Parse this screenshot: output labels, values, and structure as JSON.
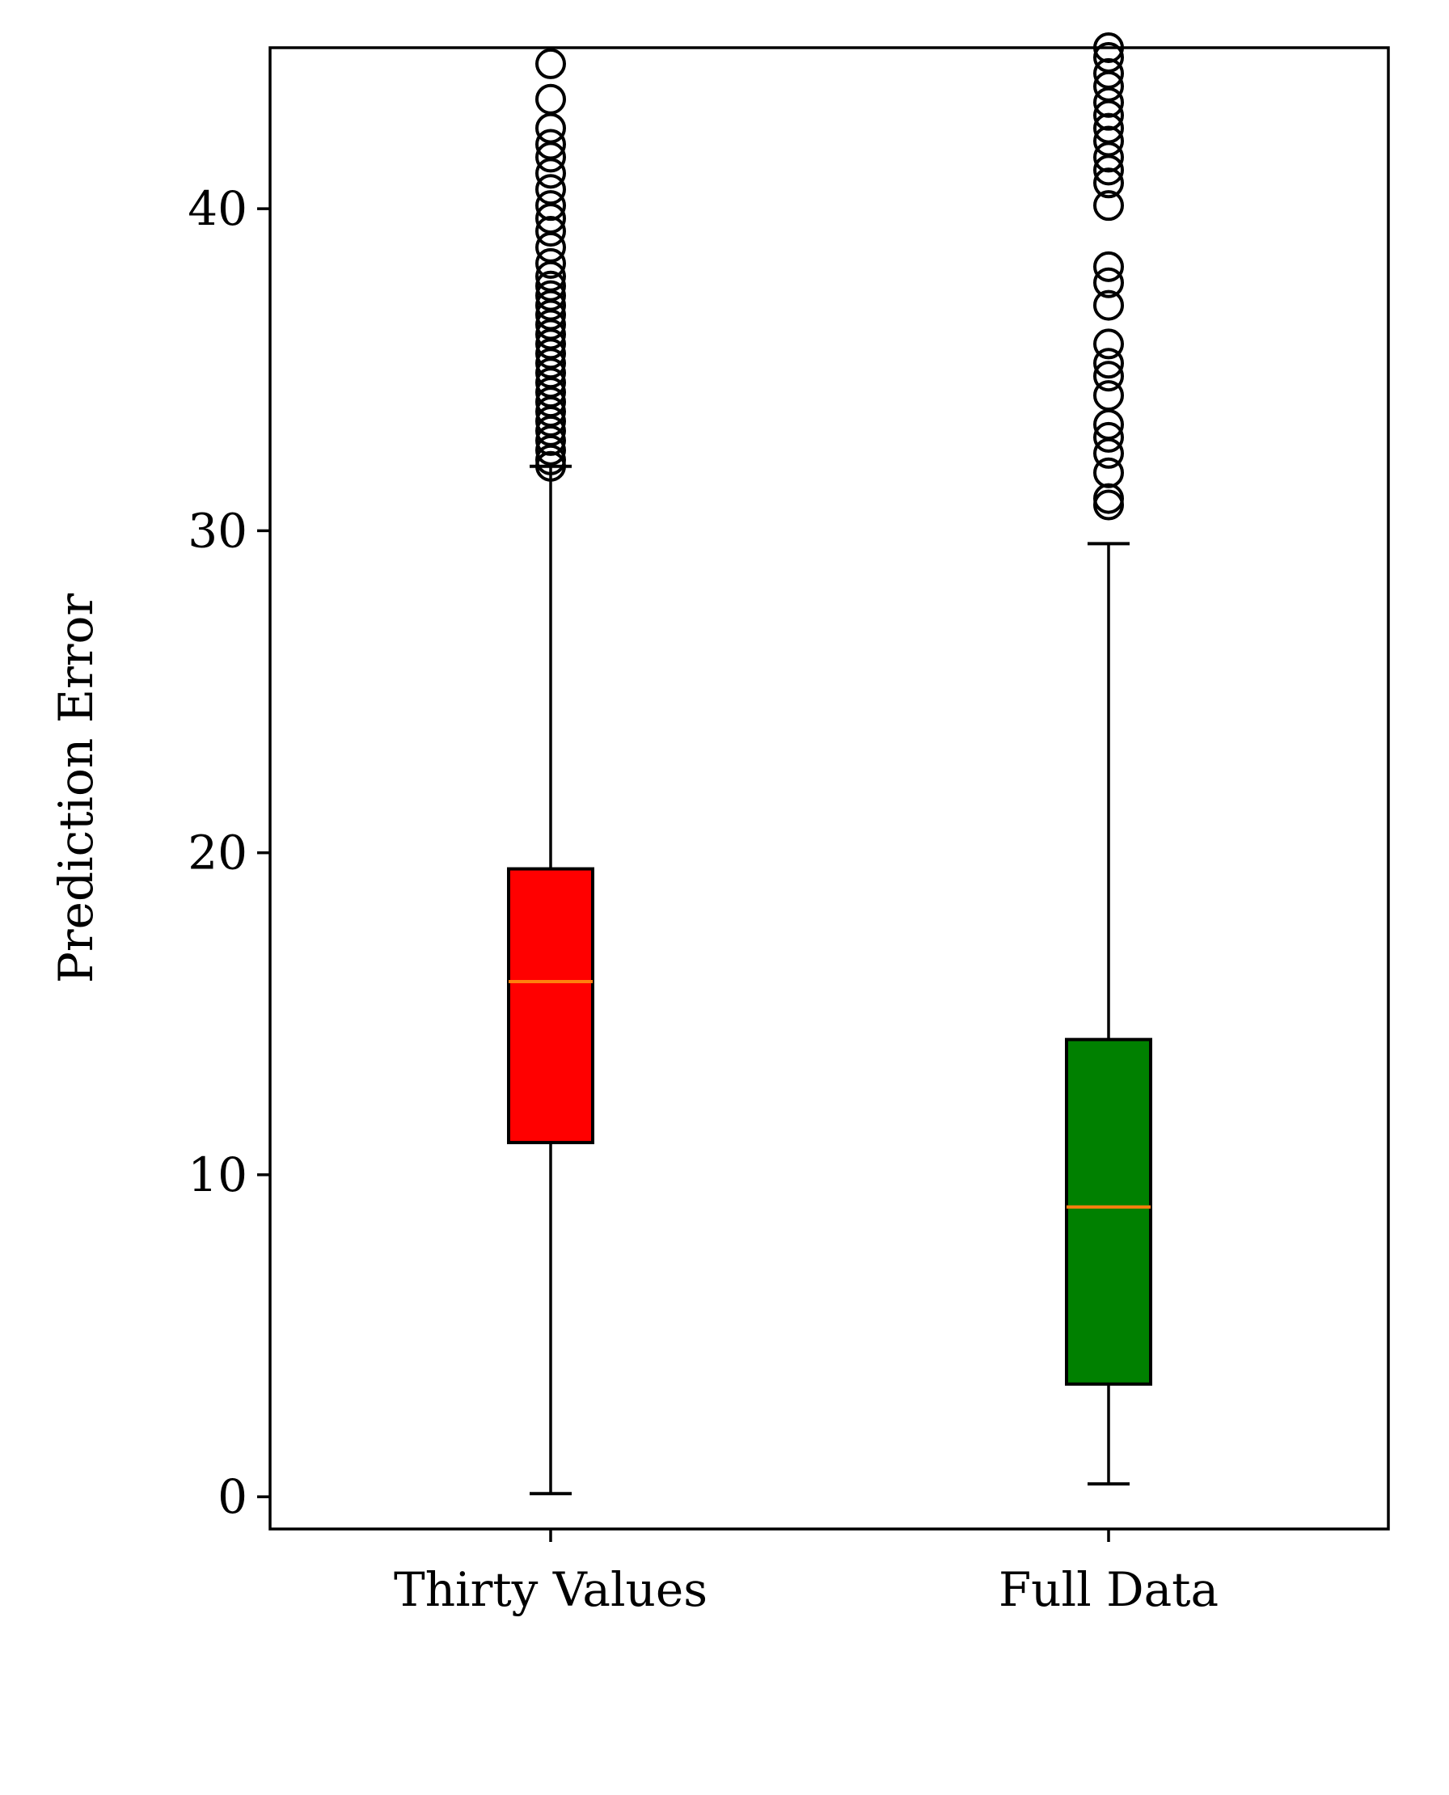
{
  "chart_data": {
    "type": "box",
    "title": "",
    "xlabel": "",
    "ylabel": "Prediction Error",
    "ylim": [
      -1,
      45
    ],
    "yticks": [
      0,
      10,
      20,
      30,
      40
    ],
    "grid": false,
    "categories": [
      "Thirty Values",
      "Full Data"
    ],
    "boxes": [
      {
        "label": "Thirty Values",
        "color": "#ff0000",
        "whisker_low": 0.1,
        "q1": 11.0,
        "median": 16.0,
        "q3": 19.5,
        "whisker_high": 32.0,
        "outliers": [
          32.0,
          32.2,
          32.5,
          32.8,
          33.1,
          33.4,
          33.7,
          34.0,
          34.3,
          34.6,
          34.9,
          35.2,
          35.5,
          35.8,
          36.1,
          36.4,
          36.7,
          37.0,
          37.3,
          37.6,
          37.9,
          38.3,
          38.8,
          39.3,
          39.7,
          40.1,
          40.6,
          41.1,
          41.6,
          42.0,
          42.5,
          43.4,
          44.5
        ]
      },
      {
        "label": "Full Data",
        "color": "#008000",
        "whisker_low": 0.4,
        "q1": 3.5,
        "median": 9.0,
        "q3": 14.2,
        "whisker_high": 29.6,
        "outliers": [
          30.8,
          31.0,
          31.8,
          32.4,
          32.9,
          33.3,
          34.2,
          34.8,
          35.2,
          35.8,
          37.0,
          37.7,
          38.2,
          40.1,
          40.8,
          41.2,
          41.6,
          42.1,
          42.5,
          42.9,
          43.3,
          43.8,
          44.2,
          44.7,
          45.0
        ]
      }
    ],
    "median_color": "#ff7f0e"
  }
}
